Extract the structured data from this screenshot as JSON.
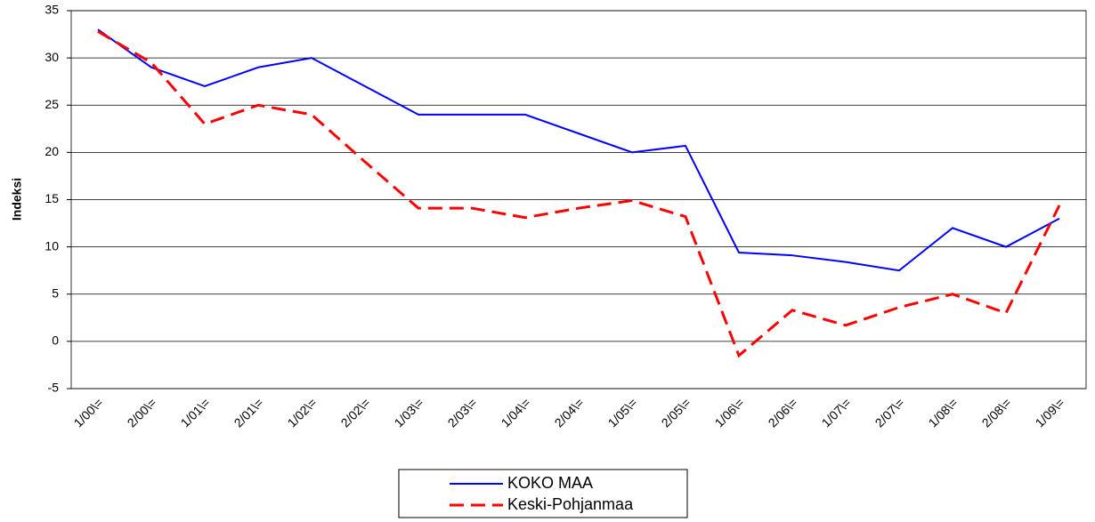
{
  "chart_data": {
    "type": "line",
    "y_label": "Indeksi",
    "categories": [
      "1/00\\=",
      "2/00\\=",
      "1/01\\=",
      "2/01\\=",
      "1/02\\=",
      "2/02\\=",
      "1/03\\=",
      "2/03\\=",
      "1/04\\=",
      "2/04\\=",
      "1/05\\=",
      "2/05\\=",
      "1/06\\=",
      "2/06\\=",
      "1/07\\=",
      "2/07\\=",
      "1/08\\=",
      "2/08\\=",
      "1/09\\="
    ],
    "series": [
      {
        "name": "KOKO MAA",
        "color": "#0000ff",
        "dash": false,
        "values": [
          33,
          29,
          27,
          29,
          30,
          27,
          24,
          24,
          24,
          22,
          20,
          20.7,
          9.4,
          9.1,
          8.4,
          7.5,
          12,
          10,
          13
        ]
      },
      {
        "name": "Keski-Pohjanmaa",
        "color": "#ff0000",
        "dash": true,
        "values": [
          32.8,
          29.5,
          23,
          25,
          24,
          19,
          14.1,
          14.1,
          13.1,
          14.1,
          14.9,
          13.2,
          -1.5,
          3.3,
          1.7,
          3.6,
          5,
          3,
          14.4
        ]
      }
    ],
    "ylim": [
      -5,
      35
    ],
    "yticks": [
      -5,
      0,
      5,
      10,
      15,
      20,
      25,
      30,
      35
    ],
    "grid": true,
    "legend": "bottom"
  }
}
